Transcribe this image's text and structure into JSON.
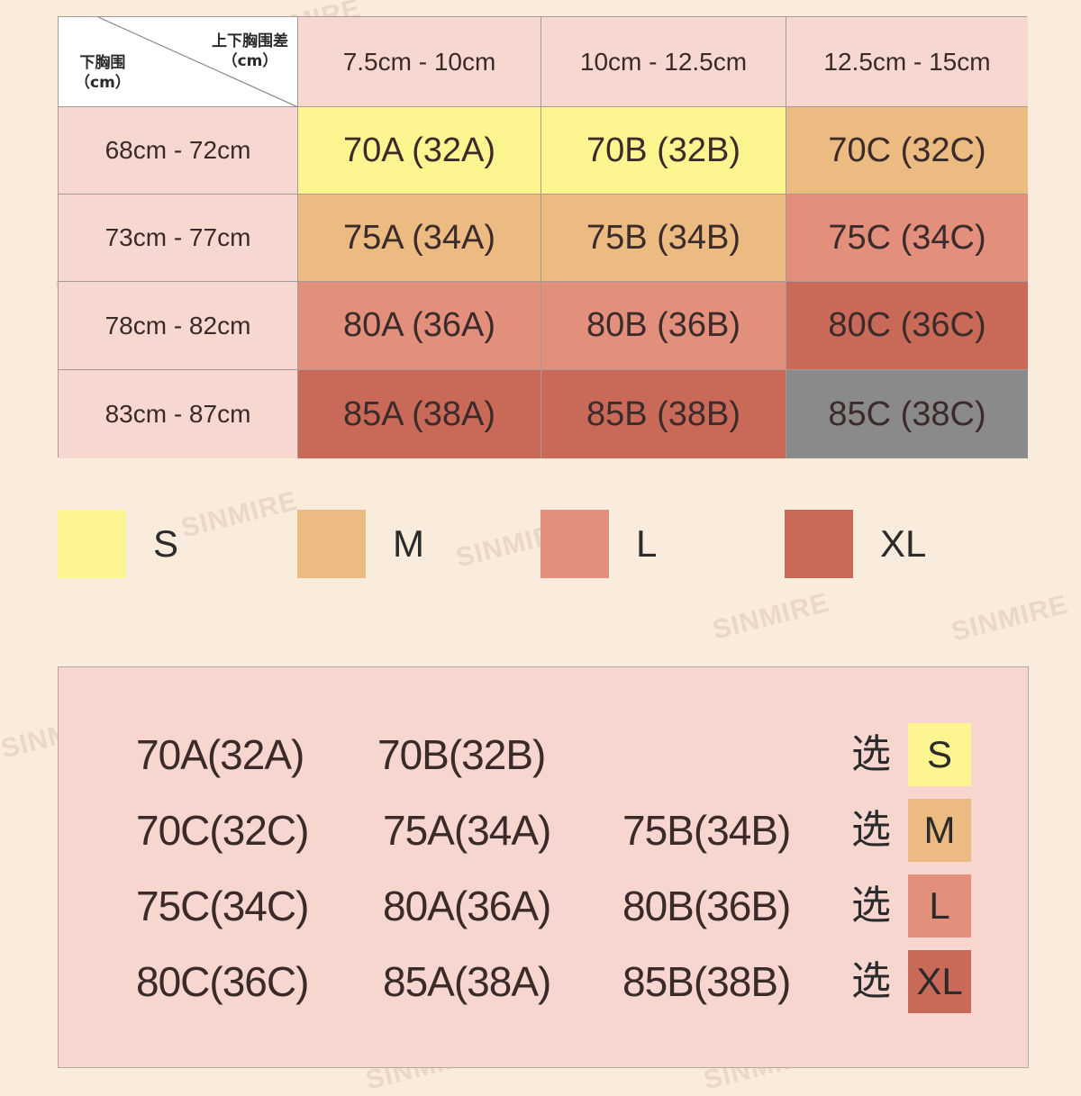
{
  "colors": {
    "S": "#FDF590",
    "M": "#ECBB82",
    "L": "#E28F7C",
    "XL": "#C96A58",
    "unavailable": "#8A8A8A",
    "header_bg": "#F7D8D1",
    "page_bg": "#FAECDD"
  },
  "watermark": "SINMIRE",
  "table": {
    "corner": {
      "top_label": "上下胸围差",
      "top_unit": "（cm）",
      "left_label": "下胸围",
      "left_unit": "（cm）"
    },
    "columns": [
      "7.5cm - 10cm",
      "10cm - 12.5cm",
      "12.5cm - 15cm"
    ],
    "rows": [
      {
        "label": "68cm - 72cm",
        "cells": [
          {
            "text": "70A (32A)",
            "size": "S"
          },
          {
            "text": "70B (32B)",
            "size": "S"
          },
          {
            "text": "70C (32C)",
            "size": "M"
          }
        ]
      },
      {
        "label": "73cm - 77cm",
        "cells": [
          {
            "text": "75A (34A)",
            "size": "M"
          },
          {
            "text": "75B (34B)",
            "size": "M"
          },
          {
            "text": "75C (34C)",
            "size": "L"
          }
        ]
      },
      {
        "label": "78cm - 82cm",
        "cells": [
          {
            "text": "80A (36A)",
            "size": "L"
          },
          {
            "text": "80B (36B)",
            "size": "L"
          },
          {
            "text": "80C (36C)",
            "size": "XL"
          }
        ]
      },
      {
        "label": "83cm - 87cm",
        "cells": [
          {
            "text": "85A (38A)",
            "size": "XL"
          },
          {
            "text": "85B (38B)",
            "size": "XL"
          },
          {
            "text": "85C (38C)",
            "size": "unavailable"
          }
        ]
      }
    ]
  },
  "legend": [
    {
      "label": "S",
      "size": "S"
    },
    {
      "label": "M",
      "size": "M"
    },
    {
      "label": "L",
      "size": "L"
    },
    {
      "label": "XL",
      "size": "XL"
    }
  ],
  "summary": {
    "pick_label": "选",
    "rows": [
      {
        "items": [
          "70A(32A)",
          "70B(32B)",
          ""
        ],
        "size": "S"
      },
      {
        "items": [
          "70C(32C)",
          "75A(34A)",
          "75B(34B)"
        ],
        "size": "M"
      },
      {
        "items": [
          "75C(34C)",
          "80A(36A)",
          "80B(36B)"
        ],
        "size": "L"
      },
      {
        "items": [
          "80C(36C)",
          "85A(38A)",
          "85B(38B)"
        ],
        "size": "XL"
      }
    ]
  }
}
